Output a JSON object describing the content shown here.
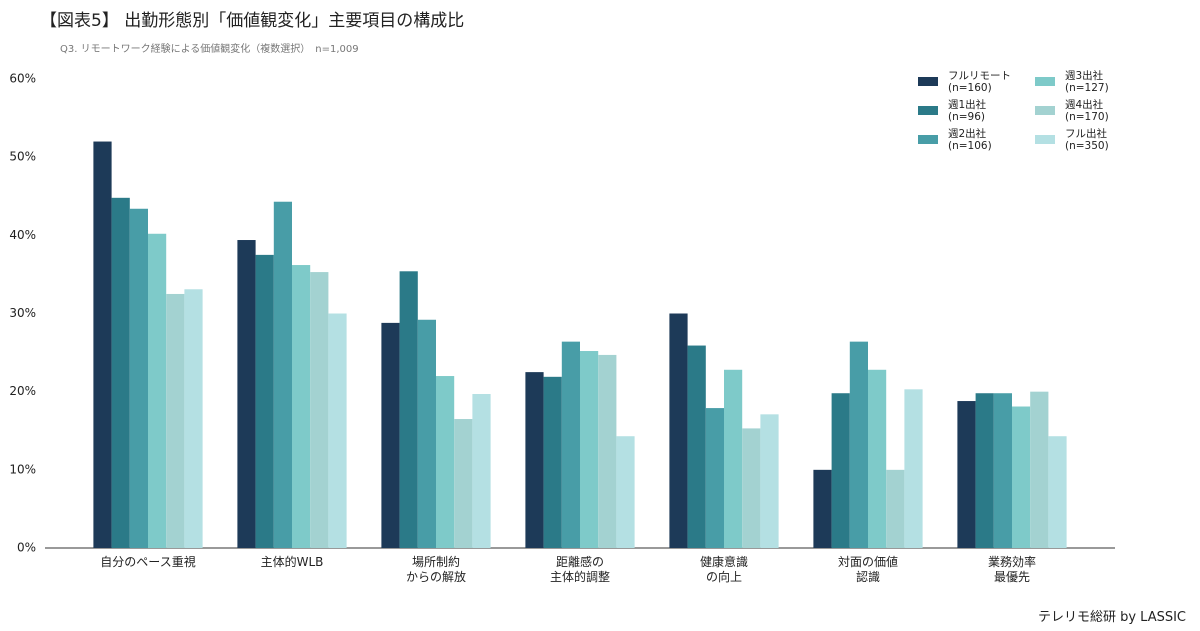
{
  "chart_data": {
    "type": "bar",
    "title": "【図表5】 出勤形態別「価値観変化」主要項目の構成比",
    "subtitle": "Q3. リモートワーク経験による価値観変化（複数選択）　n=1,009",
    "source": "テレリモ総研 by LASSIC",
    "categories": [
      "自分のペース重視",
      "主体的WLB",
      "場所制約\nからの解放",
      "距離感の\n主体的調整",
      "健康意識\nの向上",
      "対面の価値\n認識",
      "業務効率\n最優先"
    ],
    "series": [
      {
        "name": "フルリモート\n(n=160)",
        "color": "#1d3a58",
        "values": [
          52.0,
          39.4,
          28.8,
          22.5,
          30.0,
          10.0,
          18.8
        ]
      },
      {
        "name": "週1出社\n(n=96)",
        "color": "#2b7a88",
        "values": [
          44.8,
          37.5,
          35.4,
          21.9,
          25.9,
          19.8,
          19.8
        ]
      },
      {
        "name": "週2出社\n(n=106)",
        "color": "#489da7",
        "values": [
          43.4,
          44.3,
          29.2,
          26.4,
          17.9,
          26.4,
          19.8
        ]
      },
      {
        "name": "週3出社\n(n=127)",
        "color": "#7ecac9",
        "values": [
          40.2,
          36.2,
          22.0,
          25.2,
          22.8,
          22.8,
          18.1
        ]
      },
      {
        "name": "週4出社\n(n=170)",
        "color": "#a3d2d1",
        "values": [
          32.5,
          35.3,
          16.5,
          24.7,
          15.3,
          10.0,
          20.0
        ]
      },
      {
        "name": "フル出社\n(n=350)",
        "color": "#b4e0e3",
        "values": [
          33.1,
          30.0,
          19.7,
          14.3,
          17.1,
          20.3,
          14.3
        ]
      }
    ],
    "ylim": [
      0,
      60
    ],
    "yticks": [
      {
        "value": 0,
        "label": "0%"
      },
      {
        "value": 10,
        "label": "10%"
      },
      {
        "value": 20,
        "label": "20%"
      },
      {
        "value": 30,
        "label": "30%"
      },
      {
        "value": 40,
        "label": "40%"
      },
      {
        "value": 50,
        "label": "50%"
      },
      {
        "value": 60,
        "label": "60%"
      }
    ],
    "legend": "top-right"
  }
}
